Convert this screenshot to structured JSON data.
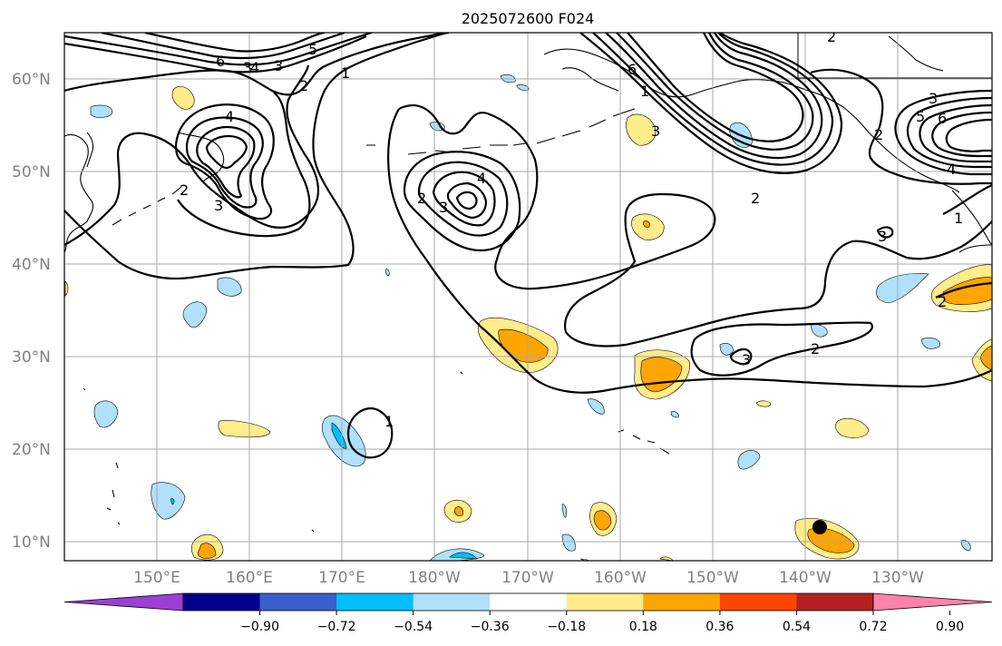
{
  "title": "2025072600 F024",
  "lat_labels": [
    "60°N",
    "50°N",
    "40°N",
    "30°N",
    "20°N",
    "10°N"
  ],
  "lon_labels": [
    "150°E",
    "160°E",
    "170°E",
    "180°W",
    "170°W",
    "160°W",
    "150°W",
    "140°W",
    "130°W"
  ],
  "colorbar": {
    "colors": [
      "#9b3fd5",
      "#00008b",
      "#3a5fcd",
      "#00bfff",
      "#b0e0fa",
      "#ffffff",
      "#ffec8b",
      "#ffa500",
      "#ff4500",
      "#b22222",
      "#ff82ab"
    ],
    "tick_labels": [
      "−0.90",
      "−0.72",
      "−0.54",
      "−0.36",
      "−0.18",
      "0.18",
      "0.36",
      "0.54",
      "0.72",
      "0.90"
    ]
  },
  "contour_labels": [
    "6",
    "4",
    "5",
    "3",
    "1",
    "4",
    "3",
    "2",
    "2",
    "3",
    "4",
    "2",
    "3",
    "1",
    "6",
    "2",
    "3",
    "2",
    "2",
    "3",
    "5",
    "6",
    "4",
    "1",
    "2",
    "3",
    "1",
    "2",
    "3"
  ],
  "colors": {
    "light_blue": "#b0e0fa",
    "deep_sky_blue": "#00bfff",
    "light_yellow": "#ffec8b",
    "orange": "#ffa500",
    "grid": "#a8a8a8"
  },
  "marker": {
    "label": "storm-center-dot",
    "color": "#000000"
  }
}
